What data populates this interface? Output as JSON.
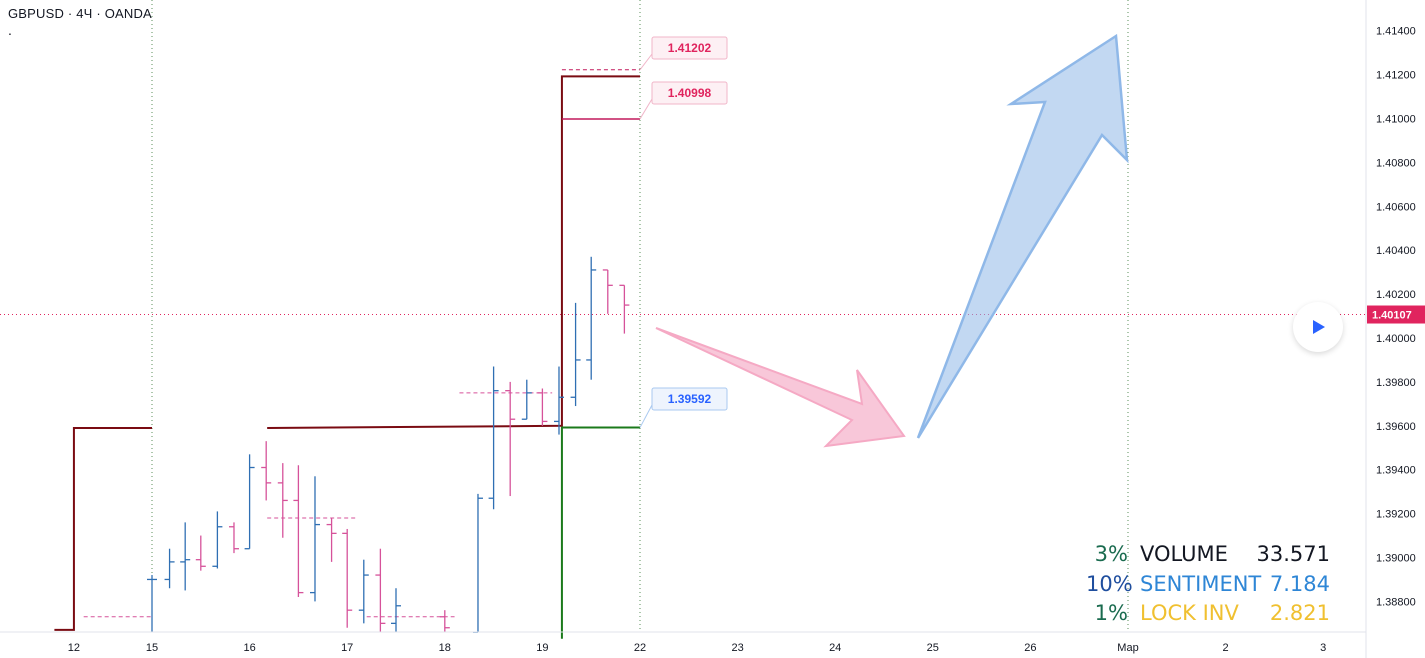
{
  "header": {
    "symbol_line": "GBPUSD · 4Ч · OANDA",
    "dot": "."
  },
  "chart_data": {
    "type": "ohlc",
    "price_axis": {
      "min": 1.3866,
      "max": 1.4152,
      "tick_labels": [
        "1.41400",
        "1.41200",
        "1.41000",
        "1.40800",
        "1.40600",
        "1.40400",
        "1.40200",
        "1.40000",
        "1.39800",
        "1.39600",
        "1.39400",
        "1.39200",
        "1.39000",
        "1.38800"
      ],
      "current_price": "1.40107",
      "current_price_color": "#e0245e"
    },
    "time_axis": {
      "labels": [
        "12",
        "15",
        "16",
        "17",
        "18",
        "19",
        "22",
        "23",
        "24",
        "25",
        "26",
        "Мар",
        "2",
        "3"
      ],
      "label_positions": [
        0.2,
        1,
        2,
        3,
        4,
        5,
        6,
        7,
        8,
        9,
        10,
        11,
        12,
        13
      ]
    },
    "bars": [
      {
        "t": 1.0,
        "o": 1.389,
        "h": 1.3892,
        "l": 1.3866,
        "c": 1.389
      },
      {
        "t": 1.18,
        "o": 1.389,
        "h": 1.3904,
        "l": 1.3886,
        "c": 1.3898
      },
      {
        "t": 1.34,
        "o": 1.3898,
        "h": 1.3916,
        "l": 1.3885,
        "c": 1.3899
      },
      {
        "t": 1.5,
        "o": 1.3899,
        "h": 1.391,
        "l": 1.3894,
        "c": 1.3896
      },
      {
        "t": 1.67,
        "o": 1.3896,
        "h": 1.3921,
        "l": 1.3895,
        "c": 1.3914
      },
      {
        "t": 1.84,
        "o": 1.3914,
        "h": 1.3916,
        "l": 1.3902,
        "c": 1.3904
      },
      {
        "t": 2.0,
        "o": 1.3904,
        "h": 1.3947,
        "l": 1.3904,
        "c": 1.3941
      },
      {
        "t": 2.17,
        "o": 1.3941,
        "h": 1.3953,
        "l": 1.3926,
        "c": 1.3934
      },
      {
        "t": 2.34,
        "o": 1.3934,
        "h": 1.3943,
        "l": 1.3909,
        "c": 1.3926
      },
      {
        "t": 2.5,
        "o": 1.3926,
        "h": 1.3942,
        "l": 1.3882,
        "c": 1.3884
      },
      {
        "t": 2.67,
        "o": 1.3884,
        "h": 1.3937,
        "l": 1.388,
        "c": 1.3915
      },
      {
        "t": 2.84,
        "o": 1.3915,
        "h": 1.3918,
        "l": 1.3898,
        "c": 1.3911
      },
      {
        "t": 3.0,
        "o": 1.3911,
        "h": 1.3913,
        "l": 1.3868,
        "c": 1.3876
      },
      {
        "t": 3.17,
        "o": 1.3876,
        "h": 1.3899,
        "l": 1.387,
        "c": 1.3892
      },
      {
        "t": 3.34,
        "o": 1.3892,
        "h": 1.3904,
        "l": 1.3866,
        "c": 1.387
      },
      {
        "t": 3.5,
        "o": 1.387,
        "h": 1.3886,
        "l": 1.3866,
        "c": 1.3878
      },
      {
        "t": 4.0,
        "o": 1.3873,
        "h": 1.3876,
        "l": 1.3866,
        "c": 1.3868
      },
      {
        "t": 4.34,
        "o": 1.3866,
        "h": 1.3929,
        "l": 1.3866,
        "c": 1.3927
      },
      {
        "t": 4.5,
        "o": 1.3927,
        "h": 1.3987,
        "l": 1.3922,
        "c": 1.3976
      },
      {
        "t": 4.67,
        "o": 1.3976,
        "h": 1.398,
        "l": 1.3928,
        "c": 1.3963
      },
      {
        "t": 4.84,
        "o": 1.3963,
        "h": 1.3981,
        "l": 1.3963,
        "c": 1.3975
      },
      {
        "t": 5.0,
        "o": 1.3975,
        "h": 1.3977,
        "l": 1.396,
        "c": 1.3962
      },
      {
        "t": 5.17,
        "o": 1.3962,
        "h": 1.3987,
        "l": 1.3956,
        "c": 1.3973
      },
      {
        "t": 5.34,
        "o": 1.3973,
        "h": 1.4016,
        "l": 1.3969,
        "c": 1.399
      },
      {
        "t": 5.5,
        "o": 1.399,
        "h": 1.4037,
        "l": 1.3981,
        "c": 1.4031
      },
      {
        "t": 5.67,
        "o": 1.4031,
        "h": 1.4031,
        "l": 1.4011,
        "c": 1.4024
      },
      {
        "t": 5.84,
        "o": 1.4024,
        "h": 1.4024,
        "l": 1.4002,
        "c": 1.4015
      }
    ],
    "level_labels": [
      {
        "value": "1.41202",
        "color": "#e0245e"
      },
      {
        "value": "1.40998",
        "color": "#e0245e"
      },
      {
        "value": "1.39592",
        "color": "#2962ff"
      }
    ],
    "colors": {
      "up": "#2f6fb3",
      "down": "#d6529a",
      "step_line": "#7a0b12",
      "magenta_line": "#c2185b",
      "green_line": "#1b7a1b",
      "down_arrow": "#f5a9c4",
      "up_arrow": "#8fb8e8"
    },
    "grid": "vertical-dotted",
    "legend": "none"
  },
  "stats": [
    {
      "pct": "3%",
      "name": "VOLUME",
      "value": "33.571",
      "pct_color": "#1a6b4f",
      "name_color": "#131722",
      "value_color": "#131722"
    },
    {
      "pct": "10%",
      "name": "SENTIMENT",
      "value": "7.184",
      "pct_color": "#1f4e9e",
      "name_color": "#2e86d6",
      "value_color": "#2e86d6"
    },
    {
      "pct": "1%",
      "name": "LOCK INV",
      "value": "2.821",
      "pct_color": "#1a6b4f",
      "name_color": "#f0c030",
      "value_color": "#f0c030"
    }
  ],
  "controls": {
    "play_icon": "play-icon"
  }
}
